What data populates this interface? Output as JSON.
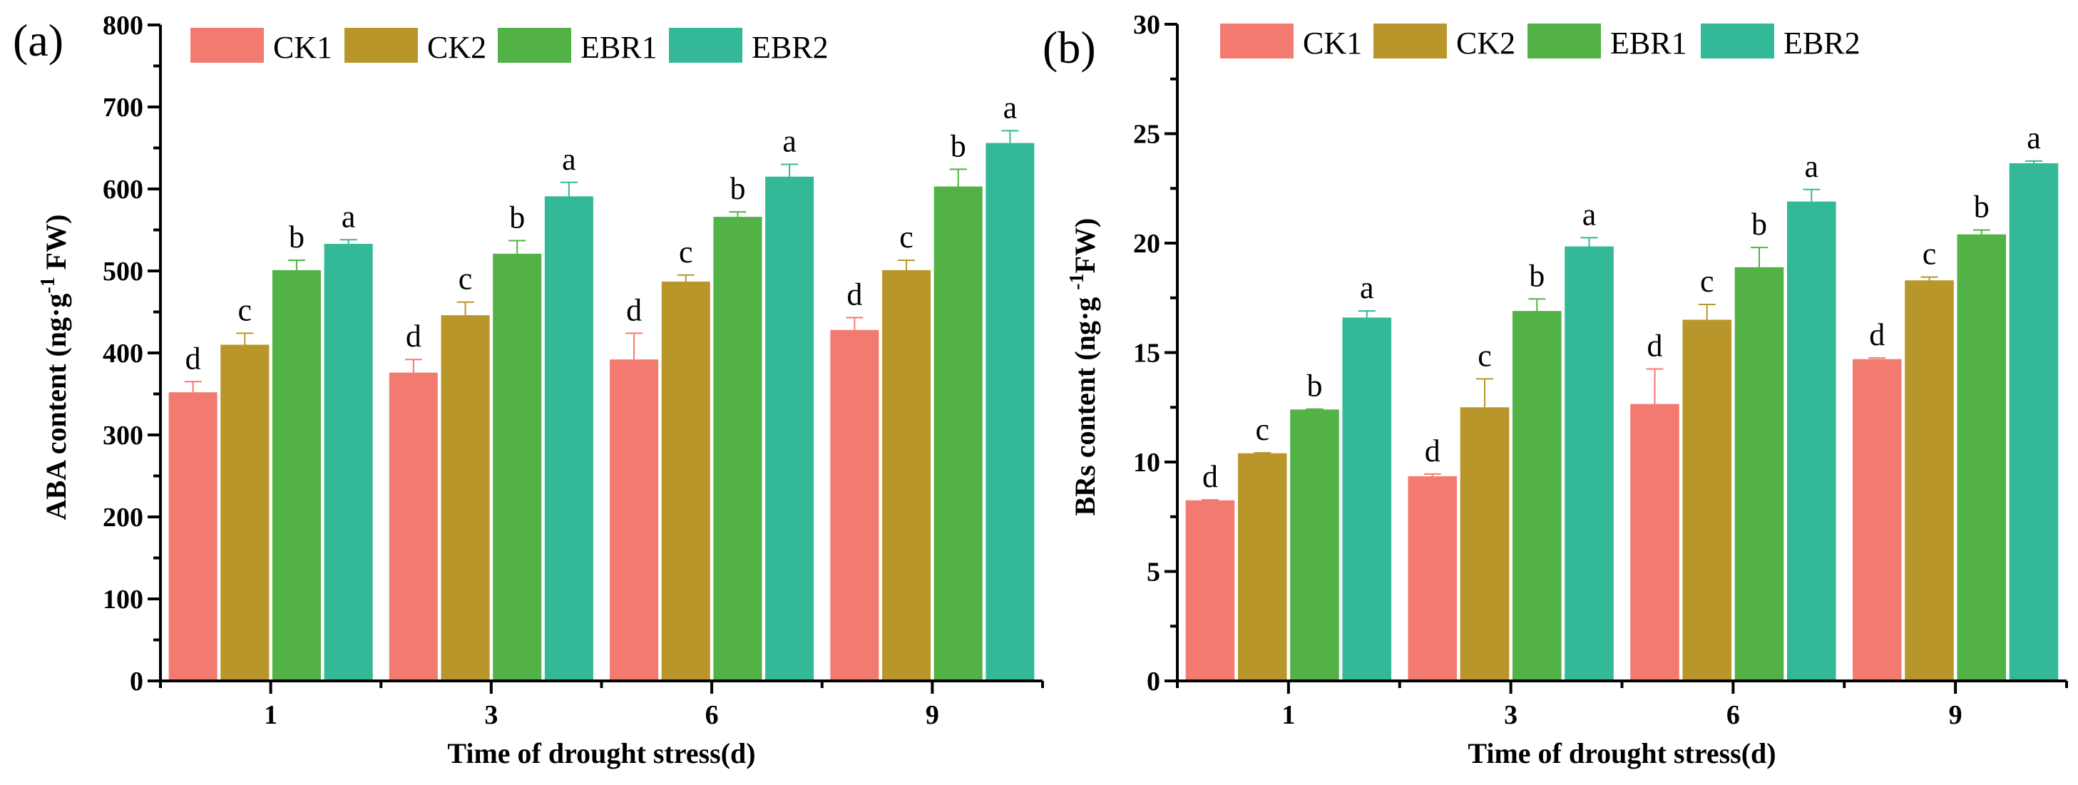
{
  "chart_data": [
    {
      "type": "bar",
      "panel_label": "(a)",
      "title": "",
      "xlabel": "Time of drought stress(d)",
      "ylabel_main": "ABA content (ng·g",
      "ylabel_sup": "-1",
      "ylabel_tail": " FW)",
      "ylim": [
        0,
        800
      ],
      "yticks": [
        0,
        100,
        200,
        300,
        400,
        500,
        600,
        700,
        800
      ],
      "categories": [
        "1",
        "3",
        "6",
        "9"
      ],
      "legend_position": "top",
      "series": [
        {
          "name": "CK1",
          "color": "#F27A70",
          "values": [
            352,
            376,
            392,
            428
          ],
          "errors": [
            13,
            16,
            32,
            15
          ],
          "letters": [
            "d",
            "d",
            "d",
            "d"
          ]
        },
        {
          "name": "CK2",
          "color": "#B8962A",
          "values": [
            410,
            446,
            487,
            501
          ],
          "errors": [
            14,
            16,
            8,
            12
          ],
          "letters": [
            "c",
            "c",
            "c",
            "c"
          ]
        },
        {
          "name": "EBR1",
          "color": "#52B245",
          "values": [
            501,
            521,
            566,
            603
          ],
          "errors": [
            12,
            16,
            6,
            21
          ],
          "letters": [
            "b",
            "b",
            "b",
            "b"
          ]
        },
        {
          "name": "EBR2",
          "color": "#33B898",
          "values": [
            533,
            591,
            615,
            656
          ],
          "errors": [
            5,
            17,
            15,
            15
          ],
          "letters": [
            "a",
            "a",
            "a",
            "a"
          ]
        }
      ]
    },
    {
      "type": "bar",
      "panel_label": "(b)",
      "title": "",
      "xlabel": "Time of drought stress(d)",
      "ylabel_main": "BRs content (ng·g ",
      "ylabel_sup": "-1",
      "ylabel_tail": "FW)",
      "ylim": [
        0,
        30
      ],
      "yticks": [
        0,
        5,
        10,
        15,
        20,
        25,
        30
      ],
      "categories": [
        "1",
        "3",
        "6",
        "9"
      ],
      "legend_position": "top",
      "series": [
        {
          "name": "CK1",
          "color": "#F27A70",
          "values": [
            8.25,
            9.35,
            12.65,
            14.7
          ],
          "errors": [
            0.02,
            0.1,
            1.6,
            0.05
          ],
          "letters": [
            "d",
            "d",
            "d",
            "d"
          ]
        },
        {
          "name": "CK2",
          "color": "#B8962A",
          "values": [
            10.4,
            12.5,
            16.5,
            18.3
          ],
          "errors": [
            0.02,
            1.3,
            0.7,
            0.15
          ],
          "letters": [
            "c",
            "c",
            "c",
            "c"
          ]
        },
        {
          "name": "EBR1",
          "color": "#52B245",
          "values": [
            12.4,
            16.9,
            18.9,
            20.4
          ],
          "errors": [
            0.02,
            0.55,
            0.9,
            0.2
          ],
          "letters": [
            "b",
            "b",
            "b",
            "b"
          ]
        },
        {
          "name": "EBR2",
          "color": "#33B898",
          "values": [
            16.6,
            19.85,
            21.9,
            23.65
          ],
          "errors": [
            0.3,
            0.4,
            0.55,
            0.1
          ],
          "letters": [
            "a",
            "a",
            "a",
            "a"
          ]
        }
      ]
    }
  ]
}
